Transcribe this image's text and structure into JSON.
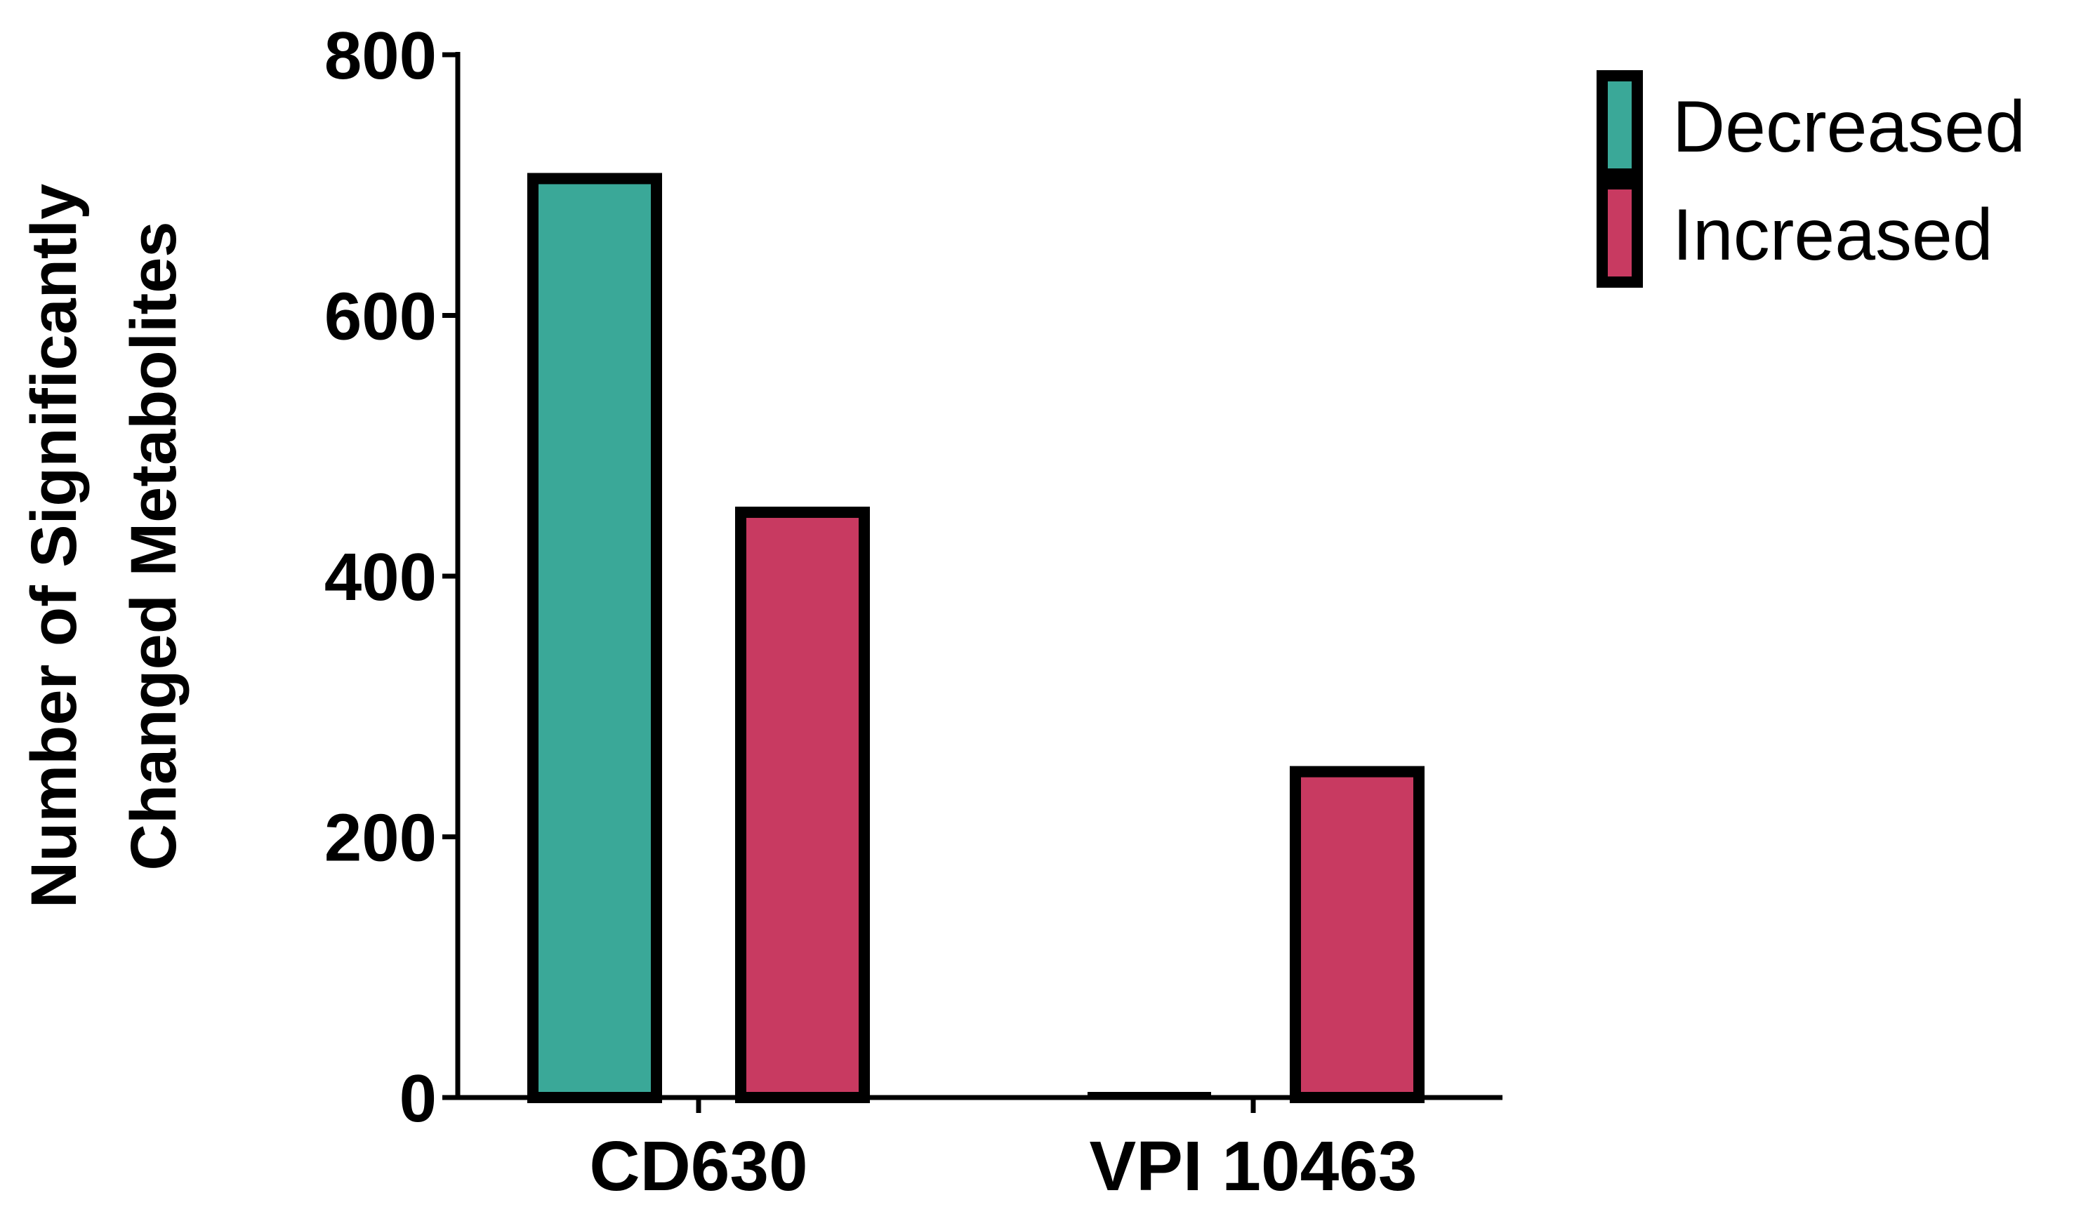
{
  "chart_data": {
    "type": "bar",
    "categories": [
      "CD630",
      "VPI 10463"
    ],
    "series": [
      {
        "name": "Decreased",
        "values": [
          705,
          0
        ]
      },
      {
        "name": "Increased",
        "values": [
          449,
          250
        ]
      }
    ],
    "title": "",
    "xlabel": "",
    "ylabel_lines": [
      "Number  of Significantly",
      "Changed Metabolites"
    ],
    "ylim": [
      0,
      800
    ],
    "yticks": [
      0,
      200,
      400,
      600,
      800
    ],
    "grid": false,
    "legend_position": "top-right",
    "colors": {
      "Decreased": "#3aa898",
      "Increased": "#c83a61",
      "outline": "#000000"
    }
  }
}
